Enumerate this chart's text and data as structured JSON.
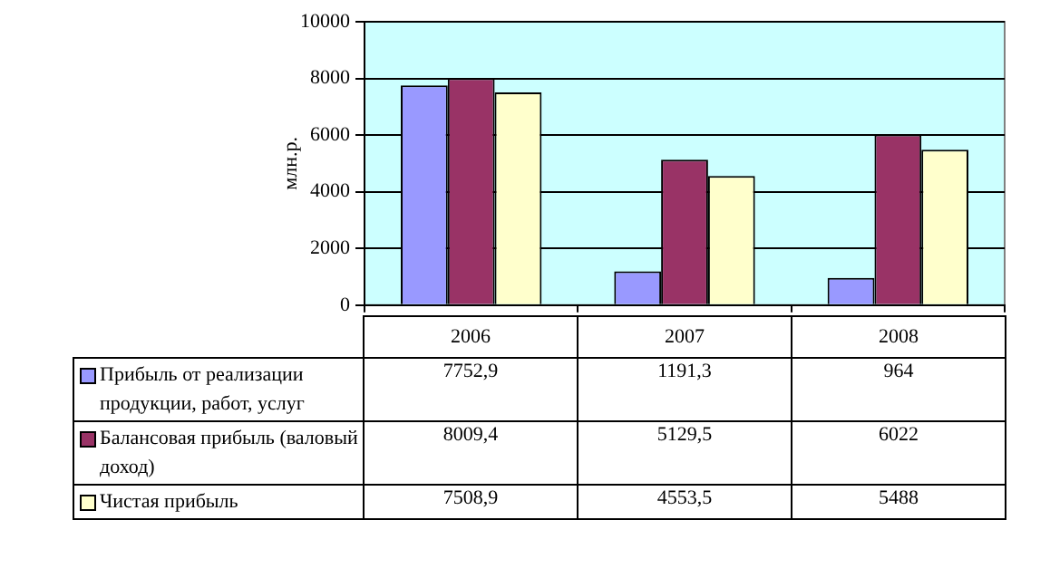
{
  "chart_data": {
    "type": "bar",
    "ylabel": "млн.р.",
    "categories": [
      "2006",
      "2007",
      "2008"
    ],
    "series": [
      {
        "name": "Прибыль от реализации продукции, работ, услуг",
        "color": "#9999ff",
        "values": [
          7752.9,
          1191.3,
          964
        ],
        "value_labels": [
          "7752,9",
          "1191,3",
          "964"
        ]
      },
      {
        "name": "Балансовая прибыль (валовый доход)",
        "color": "#993366",
        "values": [
          8009.4,
          5129.5,
          6022
        ],
        "value_labels": [
          "8009,4",
          "5129,5",
          "6022"
        ]
      },
      {
        "name": "Чистая прибыль",
        "color": "#ffffcc",
        "values": [
          7508.9,
          4553.5,
          5488
        ],
        "value_labels": [
          "7508,9",
          "4553,5",
          "5488"
        ]
      }
    ],
    "ylim": [
      0,
      10000
    ],
    "yticks": [
      0,
      2000,
      4000,
      6000,
      8000,
      10000
    ],
    "grid": "y",
    "legend": "bottom"
  }
}
